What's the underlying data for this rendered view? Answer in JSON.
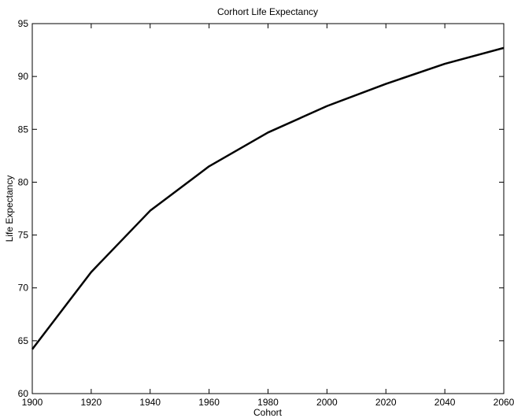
{
  "chart_data": {
    "type": "line",
    "title": "Corhort Life Expectancy",
    "x_label": "Cohort",
    "y_label": "Life Expectancy",
    "x": [
      1900,
      1920,
      1940,
      1960,
      1980,
      2000,
      2020,
      2040,
      2060
    ],
    "series": [
      {
        "name": "Life Expectancy",
        "color": "#000000",
        "values": [
          64.2,
          71.5,
          77.3,
          81.5,
          84.7,
          87.2,
          89.3,
          91.2,
          92.7
        ]
      }
    ],
    "xlim": [
      1900,
      2060
    ],
    "xticks": [
      1900,
      1920,
      1940,
      1960,
      1980,
      2000,
      2020,
      2040,
      2060
    ],
    "ylim": [
      60,
      95
    ],
    "yticks": [
      60,
      65,
      70,
      75,
      80,
      85,
      90,
      95
    ],
    "grid": false
  }
}
